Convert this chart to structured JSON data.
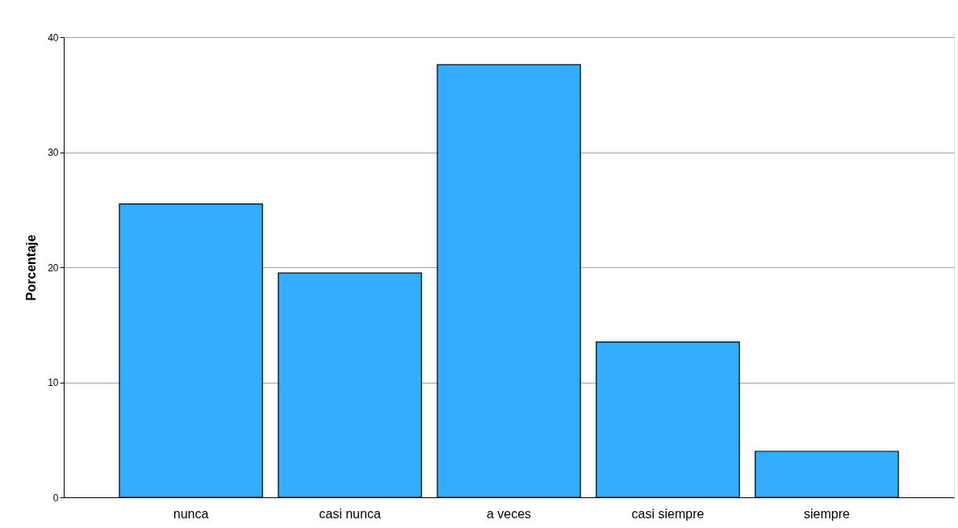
{
  "chart_data": {
    "type": "bar",
    "ylabel": "Porcentaje",
    "categories": [
      "nunca",
      "casi nunca",
      "a veces",
      "casi siempre",
      "siempre"
    ],
    "values": [
      25.5,
      19.5,
      37.6,
      13.5,
      4.0
    ],
    "color": "#33adff",
    "ylim": [
      0,
      40
    ],
    "yticks": [
      0,
      10,
      20,
      30,
      40
    ],
    "grid": "y"
  }
}
